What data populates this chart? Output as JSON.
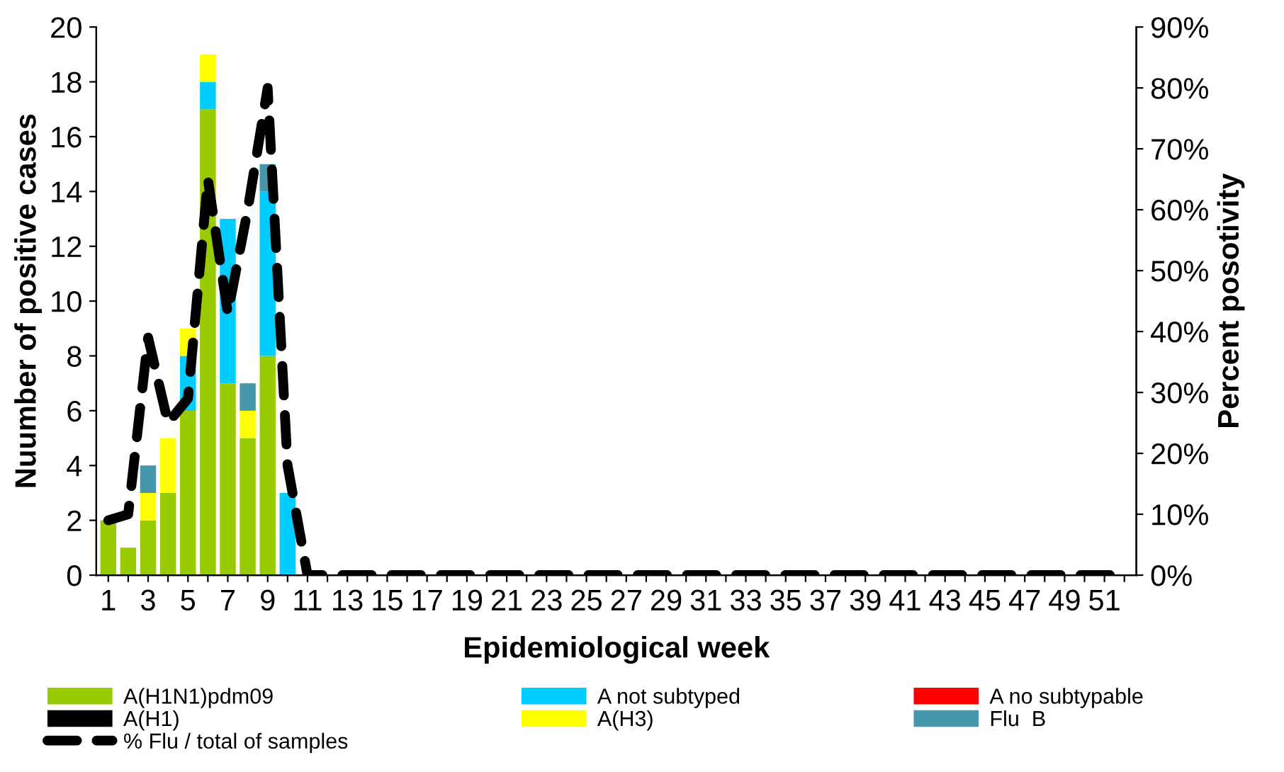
{
  "chart_data": {
    "type": "bar",
    "stacked": true,
    "xlabel": "Epidemiological week",
    "ylabel": "Nuumber of positive cases",
    "y2label": "Percent posotivity",
    "categories": [
      "1",
      null,
      "3",
      null,
      "5",
      null,
      "7",
      null,
      "9",
      null,
      "11",
      null,
      "13",
      null,
      "15",
      null,
      "17",
      null,
      "19",
      null,
      "21",
      null,
      "23",
      null,
      "25",
      null,
      "27",
      null,
      "29",
      null,
      "31",
      null,
      "33",
      null,
      "35",
      null,
      "37",
      null,
      "39",
      null,
      "41",
      null,
      "43",
      null,
      "45",
      null,
      "47",
      null,
      "49",
      null,
      "51",
      null
    ],
    "ylim": [
      0,
      20
    ],
    "yticks": [
      0,
      2,
      4,
      6,
      8,
      10,
      12,
      14,
      16,
      18,
      20
    ],
    "y2lim": [
      0,
      90
    ],
    "y2ticks": [
      {
        "value": 0,
        "label": "0%"
      },
      {
        "value": 10,
        "label": "10%"
      },
      {
        "value": 20,
        "label": "20%"
      },
      {
        "value": 30,
        "label": "30%"
      },
      {
        "value": 40,
        "label": "40%"
      },
      {
        "value": 50,
        "label": "50%"
      },
      {
        "value": 60,
        "label": "60%"
      },
      {
        "value": 70,
        "label": "70%"
      },
      {
        "value": 80,
        "label": "80%"
      },
      {
        "value": 90,
        "label": "90%"
      }
    ],
    "grid": false,
    "legend": "bottom",
    "series": [
      {
        "name": "A(H1N1)pdm09",
        "color": "#99cc00",
        "values": [
          2,
          1,
          2,
          3,
          6,
          17,
          7,
          5,
          8,
          0,
          0,
          0,
          0,
          0,
          0,
          0,
          0,
          0,
          0,
          0,
          0,
          0,
          0,
          0,
          0,
          0,
          0,
          0,
          0,
          0,
          0,
          0,
          0,
          0,
          0,
          0,
          0,
          0,
          0,
          0,
          0,
          0,
          0,
          0,
          0,
          0,
          0,
          0,
          0,
          0,
          0,
          0
        ]
      },
      {
        "name": "A not subtyped",
        "color": "#00ccff",
        "values": [
          0,
          0,
          0,
          0,
          2,
          1,
          6,
          0,
          6,
          3,
          0,
          0,
          0,
          0,
          0,
          0,
          0,
          0,
          0,
          0,
          0,
          0,
          0,
          0,
          0,
          0,
          0,
          0,
          0,
          0,
          0,
          0,
          0,
          0,
          0,
          0,
          0,
          0,
          0,
          0,
          0,
          0,
          0,
          0,
          0,
          0,
          0,
          0,
          0,
          0,
          0,
          0
        ]
      },
      {
        "name": "A no subtypable",
        "color": "#ff0000",
        "values": [
          0,
          0,
          0,
          0,
          0,
          0,
          0,
          0,
          0,
          0,
          0,
          0,
          0,
          0,
          0,
          0,
          0,
          0,
          0,
          0,
          0,
          0,
          0,
          0,
          0,
          0,
          0,
          0,
          0,
          0,
          0,
          0,
          0,
          0,
          0,
          0,
          0,
          0,
          0,
          0,
          0,
          0,
          0,
          0,
          0,
          0,
          0,
          0,
          0,
          0,
          0,
          0
        ]
      },
      {
        "name": "A(H1)",
        "color": "#000000",
        "values": [
          0,
          0,
          0,
          0,
          0,
          0,
          0,
          0,
          0,
          0,
          0,
          0,
          0,
          0,
          0,
          0,
          0,
          0,
          0,
          0,
          0,
          0,
          0,
          0,
          0,
          0,
          0,
          0,
          0,
          0,
          0,
          0,
          0,
          0,
          0,
          0,
          0,
          0,
          0,
          0,
          0,
          0,
          0,
          0,
          0,
          0,
          0,
          0,
          0,
          0,
          0,
          0
        ]
      },
      {
        "name": "A(H3)",
        "color": "#ffff00",
        "values": [
          0,
          0,
          1,
          2,
          1,
          1,
          0,
          1,
          0,
          0,
          0,
          0,
          0,
          0,
          0,
          0,
          0,
          0,
          0,
          0,
          0,
          0,
          0,
          0,
          0,
          0,
          0,
          0,
          0,
          0,
          0,
          0,
          0,
          0,
          0,
          0,
          0,
          0,
          0,
          0,
          0,
          0,
          0,
          0,
          0,
          0,
          0,
          0,
          0,
          0,
          0,
          0
        ]
      },
      {
        "name": "Flu  B",
        "color": "#4696ac",
        "values": [
          0,
          0,
          1,
          0,
          0,
          0,
          0,
          1,
          1,
          0,
          0,
          0,
          0,
          0,
          0,
          0,
          0,
          0,
          0,
          0,
          0,
          0,
          0,
          0,
          0,
          0,
          0,
          0,
          0,
          0,
          0,
          0,
          0,
          0,
          0,
          0,
          0,
          0,
          0,
          0,
          0,
          0,
          0,
          0,
          0,
          0,
          0,
          0,
          0,
          0,
          0,
          0
        ]
      },
      {
        "name": "% Flu / total of samples",
        "type": "line",
        "axis": "y2",
        "color": "#000000",
        "line_style": "dashed",
        "marker": "none",
        "values": [
          9,
          10,
          39,
          25,
          29,
          65,
          43,
          60,
          80,
          18,
          0,
          0,
          0,
          0,
          0,
          0,
          0,
          0,
          0,
          0,
          0,
          0,
          0,
          0,
          0,
          0,
          0,
          0,
          0,
          0,
          0,
          0,
          0,
          0,
          0,
          0,
          0,
          0,
          0,
          0,
          0,
          0,
          0,
          0,
          0,
          0,
          0,
          0,
          0,
          0,
          0,
          0
        ]
      }
    ]
  }
}
